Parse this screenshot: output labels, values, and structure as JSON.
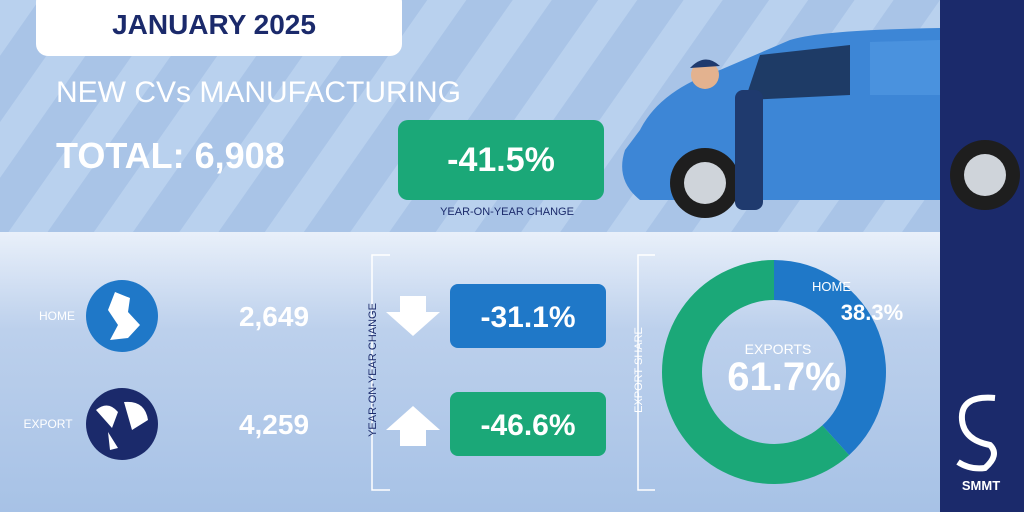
{
  "header": {
    "date": "JANUARY 2025",
    "title": "NEW CVs MANUFACTURING"
  },
  "total": {
    "text": "TOTAL: 6,908",
    "change": "-41.5%",
    "change_label": "YEAR-ON-YEAR CHANGE"
  },
  "breakdown": {
    "change_label": "YEAR-ON-YEAR CHANGE",
    "rows": [
      {
        "label": "HOME",
        "value": "2,649",
        "change": "-31.1%"
      },
      {
        "label": "EXPORT",
        "value": "4,259",
        "change": "-46.6%"
      }
    ]
  },
  "chart_data": {
    "type": "donut",
    "title": "EXPORT SHARE",
    "categories": [
      "HOME",
      "EXPORTS"
    ],
    "values": [
      38.3,
      61.7
    ],
    "value_labels": [
      "38.3%",
      "61.7%"
    ],
    "colors": [
      "#1f78c8",
      "#1ba878"
    ]
  },
  "logo": "SMMT"
}
